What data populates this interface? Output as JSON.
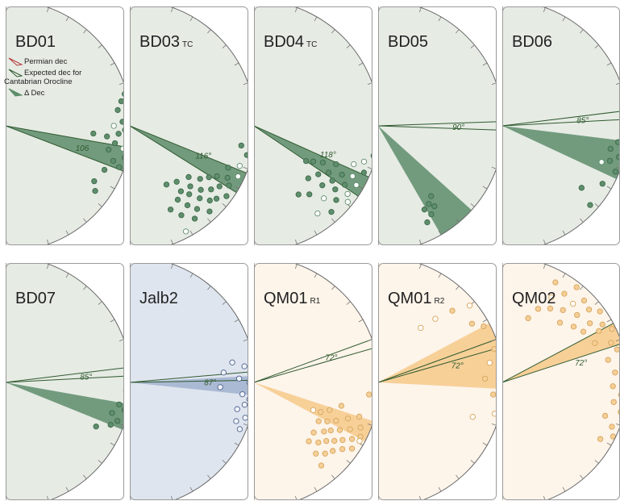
{
  "legend": {
    "permian_dec": "Permian dec",
    "expected_dec_line1": "Expected dec for",
    "expected_dec_line2": "Cantabrian Orocline",
    "delta_dec": "Δ Dec"
  },
  "colors": {
    "green_bg": "#e6ebe4",
    "blue_bg": "#dfe5ef",
    "orange_bg": "#fdf4ea",
    "frame": "#9a9a9a",
    "permian_line": "#b23a3a",
    "expected_line": "#2f5a2f",
    "green_fill": "#5d8d6b",
    "blue_fill": "#7f98bd",
    "orange_fill": "#f4c47c"
  },
  "panels": [
    {
      "name": "BD01",
      "sub": "",
      "theme": "green",
      "wedge": [
        100,
        111
      ],
      "expected": [
        100,
        111
      ],
      "angle_label": "106",
      "angle_dir": 108,
      "dots": [
        [
          78,
          0.94,
          1
        ],
        [
          82,
          0.9,
          1
        ],
        [
          85,
          0.97,
          1
        ],
        [
          88,
          0.93,
          1
        ],
        [
          90,
          0.86,
          0
        ],
        [
          92,
          0.95,
          1
        ],
        [
          94,
          0.9,
          1
        ],
        [
          96,
          0.81,
          1
        ],
        [
          97,
          0.97,
          1
        ],
        [
          99,
          0.88,
          1
        ],
        [
          101,
          0.95,
          0
        ],
        [
          103,
          0.84,
          1
        ],
        [
          105,
          0.98,
          1
        ],
        [
          108,
          0.9,
          1
        ],
        [
          110,
          0.96,
          1
        ],
        [
          114,
          0.86,
          1
        ],
        [
          122,
          0.83,
          1
        ],
        [
          126,
          0.88,
          1
        ],
        [
          75,
          0.98,
          1
        ],
        [
          95,
          0.7,
          1
        ]
      ]
    },
    {
      "name": "BD03",
      "sub": "TC",
      "theme": "green",
      "wedge": [
        112,
        122
      ],
      "expected": [
        112,
        122
      ],
      "angle_label": "116°",
      "angle_dir": 114,
      "dots": [
        [
          110,
          0.93,
          0
        ],
        [
          113,
          0.85,
          1
        ],
        [
          115,
          0.95,
          0
        ],
        [
          118,
          0.88,
          1
        ],
        [
          120,
          0.8,
          1
        ],
        [
          121,
          0.92,
          1
        ],
        [
          123,
          0.75,
          1
        ],
        [
          124,
          0.86,
          1
        ],
        [
          126,
          0.95,
          1
        ],
        [
          127,
          0.7,
          1
        ],
        [
          128,
          0.82,
          1
        ],
        [
          130,
          0.9,
          1
        ],
        [
          131,
          0.62,
          1
        ],
        [
          132,
          0.76,
          1
        ],
        [
          133,
          0.87,
          1
        ],
        [
          135,
          0.68,
          1
        ],
        [
          136,
          0.8,
          1
        ],
        [
          137,
          0.93,
          1
        ],
        [
          139,
          0.72,
          1
        ],
        [
          140,
          0.58,
          1
        ],
        [
          141,
          0.85,
          1
        ],
        [
          142,
          0.66,
          1
        ],
        [
          144,
          0.78,
          1
        ],
        [
          145,
          0.9,
          1
        ],
        [
          147,
          0.7,
          1
        ],
        [
          148,
          0.55,
          1
        ],
        [
          150,
          0.82,
          1
        ],
        [
          152,
          0.95,
          0
        ],
        [
          154,
          0.74,
          1
        ],
        [
          100,
          0.9,
          1
        ],
        [
          104,
          0.96,
          1
        ]
      ]
    },
    {
      "name": "BD04",
      "sub": "TC",
      "theme": "green",
      "wedge": [
        114,
        124
      ],
      "expected": [
        114,
        124
      ],
      "angle_label": "118°",
      "angle_dir": 113,
      "dots": [
        [
          108,
          0.92,
          0
        ],
        [
          111,
          0.85,
          0
        ],
        [
          113,
          0.95,
          1
        ],
        [
          115,
          0.72,
          1
        ],
        [
          117,
          0.88,
          0
        ],
        [
          118,
          0.62,
          1
        ],
        [
          119,
          0.8,
          1
        ],
        [
          120,
          0.94,
          0
        ],
        [
          121,
          0.55,
          1
        ],
        [
          122,
          0.7,
          1
        ],
        [
          123,
          0.86,
          1
        ],
        [
          124,
          0.5,
          1
        ],
        [
          125,
          0.76,
          1
        ],
        [
          126,
          0.92,
          0
        ],
        [
          127,
          0.64,
          1
        ],
        [
          128,
          0.82,
          1
        ],
        [
          129,
          0.96,
          0
        ],
        [
          131,
          0.72,
          1
        ],
        [
          132,
          0.88,
          1
        ],
        [
          134,
          0.6,
          1
        ],
        [
          136,
          0.8,
          0
        ],
        [
          138,
          0.92,
          1
        ],
        [
          141,
          0.7,
          1
        ],
        [
          144,
          0.86,
          0
        ],
        [
          147,
          0.65,
          1
        ],
        [
          104,
          0.98,
          1
        ]
      ]
    },
    {
      "name": "BD05",
      "sub": "",
      "theme": "green",
      "wedge": [
        132,
        150
      ],
      "expected": [
        90,
        90
      ],
      "angle_label": "90°",
      "angle_dir": 93,
      "dots": [
        [
          143,
          0.7,
          1
        ],
        [
          145,
          0.78,
          1
        ],
        [
          147,
          0.74,
          1
        ],
        [
          149,
          0.82,
          1
        ],
        [
          151,
          0.76,
          1
        ],
        [
          153,
          0.86,
          1
        ]
      ]
    },
    {
      "name": "BD06",
      "sub": "",
      "theme": "green",
      "wedge": [
        97,
        115
      ],
      "expected": [
        85,
        85
      ],
      "angle_label": "85°",
      "angle_dir": 88,
      "dots": [
        [
          98,
          0.93,
          1
        ],
        [
          102,
          0.88,
          1
        ],
        [
          105,
          0.96,
          1
        ],
        [
          108,
          0.9,
          1
        ],
        [
          110,
          0.84,
          0
        ],
        [
          112,
          0.97,
          1
        ],
        [
          120,
          0.92,
          1
        ],
        [
          128,
          0.8,
          1
        ],
        [
          132,
          0.94,
          1
        ],
        [
          85,
          0.97,
          1
        ]
      ]
    },
    {
      "name": "BD07",
      "sub": "",
      "theme": "green",
      "wedge": [
        100,
        112
      ],
      "expected": [
        85,
        85
      ],
      "angle_label": "85°",
      "angle_dir": 88,
      "dots": [
        [
          88,
          0.98,
          0
        ],
        [
          94,
          0.96,
          1
        ],
        [
          101,
          0.92,
          1
        ],
        [
          103,
          0.97,
          1
        ],
        [
          106,
          0.88,
          1
        ],
        [
          109,
          0.94,
          1
        ],
        [
          112,
          0.9,
          1
        ],
        [
          116,
          0.8,
          1
        ]
      ]
    },
    {
      "name": "Jalb2",
      "sub": "",
      "theme": "blue",
      "wedge": [
        87,
        96
      ],
      "expected": [
        87,
        87
      ],
      "angle_label": "87°",
      "angle_dir": 92,
      "dots": [
        [
          79,
          0.83,
          0
        ],
        [
          82,
          0.92,
          0
        ],
        [
          84,
          0.75,
          0
        ],
        [
          86,
          0.96,
          0
        ],
        [
          88,
          0.87,
          0
        ],
        [
          90,
          0.95,
          0
        ],
        [
          93,
          0.72,
          0
        ],
        [
          96,
          0.9,
          0
        ],
        [
          98,
          0.96,
          0
        ],
        [
          101,
          0.93,
          0
        ],
        [
          104,
          0.88,
          0
        ],
        [
          107,
          0.96,
          0
        ],
        [
          110,
          0.9,
          0
        ],
        [
          113,
          0.95,
          0
        ]
      ]
    },
    {
      "name": "QM01",
      "sub": "R1",
      "theme": "orange",
      "wedge": [
        108,
        118
      ],
      "expected": [
        72,
        72
      ],
      "angle_label": "72°",
      "angle_dir": 74,
      "dots": [
        [
          91,
          0.96,
          1
        ],
        [
          96,
          0.92,
          1
        ],
        [
          105,
          0.72,
          1
        ],
        [
          108,
          0.88,
          1
        ],
        [
          110,
          0.64,
          1
        ],
        [
          111,
          0.8,
          1
        ],
        [
          113,
          0.92,
          1
        ],
        [
          114,
          0.58,
          1
        ],
        [
          115,
          0.72,
          1
        ],
        [
          116,
          0.85,
          1
        ],
        [
          117,
          0.95,
          1
        ],
        [
          118,
          0.66,
          1
        ],
        [
          119,
          0.78,
          1
        ],
        [
          120,
          0.9,
          1
        ],
        [
          121,
          0.6,
          1
        ],
        [
          122,
          0.72,
          1
        ],
        [
          123,
          0.84,
          1
        ],
        [
          124,
          0.94,
          1
        ],
        [
          125,
          0.68,
          1
        ],
        [
          126,
          0.79,
          1
        ],
        [
          127,
          0.88,
          1
        ],
        [
          129,
          0.74,
          1
        ],
        [
          130,
          0.62,
          1
        ],
        [
          131,
          0.83,
          1
        ],
        [
          133,
          0.7,
          1
        ],
        [
          135,
          0.8,
          1
        ],
        [
          137,
          0.64,
          1
        ],
        [
          139,
          0.75,
          1
        ],
        [
          141,
          0.85,
          1
        ],
        [
          115,
          0.52,
          0
        ],
        [
          119,
          0.96,
          0
        ]
      ]
    },
    {
      "name": "QM01",
      "sub": "R2",
      "theme": "orange",
      "wedge": [
        62,
        93
      ],
      "expected": [
        72,
        72
      ],
      "angle_label": "72°",
      "angle_dir": 80,
      "dots": [
        [
          38,
          0.55,
          0
        ],
        [
          42,
          0.68,
          0
        ],
        [
          46,
          0.82,
          1
        ],
        [
          50,
          0.95,
          0
        ],
        [
          58,
          0.88,
          1
        ],
        [
          62,
          0.95,
          1
        ],
        [
          74,
          0.96,
          1
        ],
        [
          80,
          0.9,
          0
        ],
        [
          84,
          0.97,
          1
        ],
        [
          88,
          0.85,
          1
        ],
        [
          96,
          0.92,
          1
        ],
        [
          105,
          0.96,
          0
        ],
        [
          110,
          0.8,
          0
        ]
      ]
    },
    {
      "name": "QM02",
      "sub": "",
      "theme": "orange",
      "wedge": [
        62,
        72
      ],
      "expected": [
        62,
        72
      ],
      "angle_label": "72°",
      "angle_dir": 78,
      "dots": [
        [
          22,
          0.55,
          1
        ],
        [
          26,
          0.65,
          1
        ],
        [
          28,
          0.9,
          1
        ],
        [
          30,
          0.78,
          0
        ],
        [
          33,
          0.7,
          1
        ],
        [
          35,
          0.86,
          1
        ],
        [
          38,
          0.96,
          1
        ],
        [
          40,
          0.75,
          1
        ],
        [
          42,
          0.84,
          0
        ],
        [
          44,
          0.66,
          1
        ],
        [
          45,
          0.92,
          1
        ],
        [
          48,
          0.8,
          1
        ],
        [
          50,
          0.9,
          1
        ],
        [
          52,
          0.72,
          1
        ],
        [
          54,
          0.96,
          1
        ],
        [
          56,
          0.84,
          1
        ],
        [
          58,
          0.76,
          1
        ],
        [
          60,
          0.92,
          1
        ],
        [
          62,
          0.87,
          1
        ],
        [
          64,
          0.97,
          1
        ],
        [
          67,
          0.8,
          1
        ],
        [
          70,
          0.92,
          1
        ],
        [
          74,
          0.95,
          1
        ],
        [
          78,
          0.86,
          1
        ],
        [
          82,
          0.97,
          1
        ],
        [
          85,
          0.9,
          1
        ],
        [
          88,
          0.96,
          1
        ],
        [
          92,
          0.88,
          1
        ],
        [
          96,
          0.95,
          1
        ],
        [
          100,
          0.9,
          1
        ],
        [
          104,
          0.97,
          1
        ],
        [
          108,
          0.86,
          1
        ],
        [
          112,
          0.94,
          1
        ],
        [
          116,
          0.98,
          1
        ],
        [
          120,
          0.9,
          1
        ]
      ]
    }
  ]
}
